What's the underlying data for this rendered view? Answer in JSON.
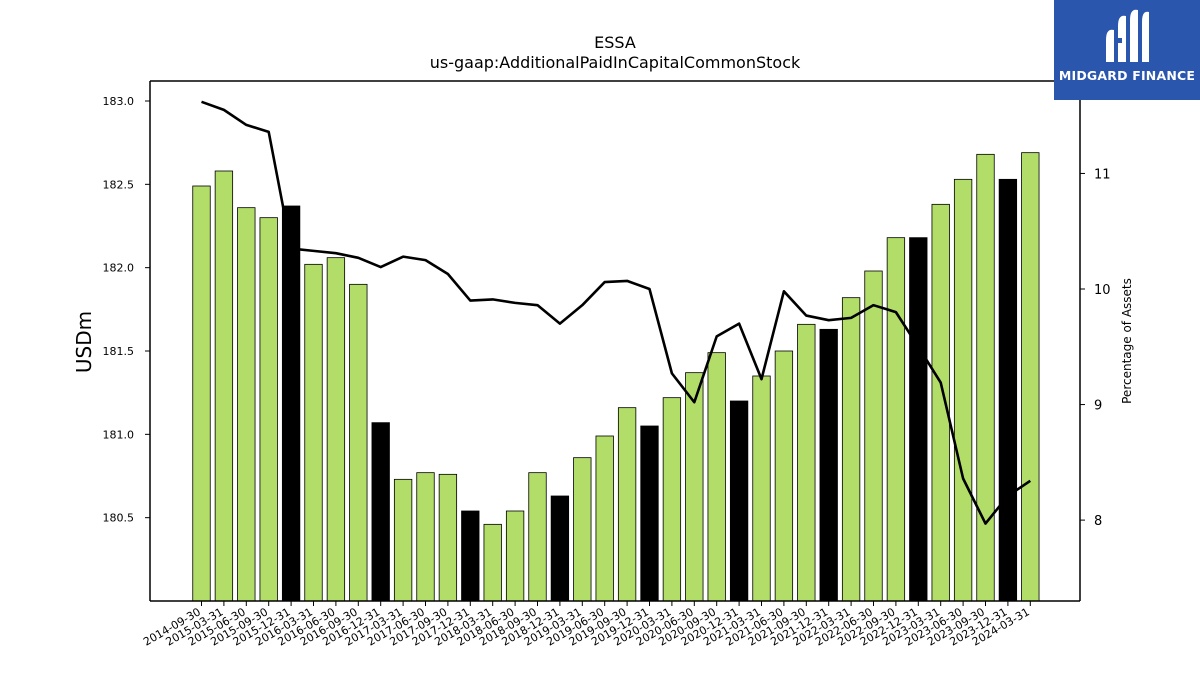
{
  "chart_data": {
    "type": "bar",
    "title": "ESSA",
    "subtitle": "us-gaap:AdditionalPaidInCapitalCommonStock",
    "ylabel": "USDm",
    "y2label": "Percentage of Assets",
    "ylim": [
      180.0,
      183.12
    ],
    "y2lim": [
      7.3,
      11.8
    ],
    "yticks": [
      "180.5",
      "181.0",
      "181.5",
      "182.0",
      "182.5",
      "183.0"
    ],
    "y2ticks": [
      "8",
      "9",
      "10",
      "11"
    ],
    "categories": [
      "2014-09-30",
      "2015-03-31",
      "2015-06-30",
      "2015-09-30",
      "2015-12-31",
      "2016-03-31",
      "2016-06-30",
      "2016-09-30",
      "2016-12-31",
      "2017-03-31",
      "2017-06-30",
      "2017-09-30",
      "2017-12-31",
      "2018-03-31",
      "2018-06-30",
      "2018-09-30",
      "2018-12-31",
      "2019-03-31",
      "2019-06-30",
      "2019-09-30",
      "2019-12-31",
      "2020-03-31",
      "2020-06-30",
      "2020-09-30",
      "2020-12-31",
      "2021-03-31",
      "2021-06-30",
      "2021-09-30",
      "2021-12-31",
      "2022-03-31",
      "2022-06-30",
      "2022-09-30",
      "2022-12-31",
      "2023-03-31",
      "2023-06-30",
      "2023-09-30",
      "2023-12-31",
      "2024-03-31"
    ],
    "series": [
      {
        "kind": "bar",
        "values": [
          182.49,
          182.58,
          182.36,
          182.3,
          182.37,
          182.02,
          182.06,
          181.9,
          181.07,
          180.73,
          180.77,
          180.76,
          180.54,
          180.46,
          180.54,
          180.77,
          180.63,
          180.86,
          180.99,
          181.16,
          181.05,
          181.22,
          181.37,
          181.49,
          181.2,
          181.35,
          181.5,
          181.66,
          181.63,
          181.82,
          181.98,
          182.18,
          182.18,
          182.38,
          182.53,
          182.68,
          182.53,
          182.69
        ],
        "highlight": [
          false,
          false,
          false,
          false,
          true,
          false,
          false,
          false,
          true,
          false,
          false,
          false,
          true,
          false,
          false,
          false,
          true,
          false,
          false,
          false,
          true,
          false,
          false,
          false,
          true,
          false,
          false,
          false,
          true,
          false,
          false,
          false,
          true,
          false,
          false,
          false,
          true,
          false
        ]
      },
      {
        "kind": "line",
        "axis": "right",
        "values": [
          11.62,
          11.55,
          11.42,
          11.36,
          10.35,
          10.33,
          10.31,
          10.27,
          10.19,
          10.28,
          10.25,
          10.13,
          9.9,
          9.91,
          9.88,
          9.86,
          9.7,
          9.86,
          10.06,
          10.07,
          10.0,
          9.27,
          9.02,
          9.59,
          9.7,
          9.22,
          9.98,
          9.77,
          9.73,
          9.75,
          9.86,
          9.8,
          9.5,
          9.19,
          8.36,
          7.97,
          8.21,
          8.34
        ]
      }
    ],
    "colors": {
      "bar": "#b3dd69",
      "highlight": "#000000",
      "line": "#000000"
    }
  },
  "brand": {
    "name": "MIDGARD FINANCE",
    "color": "#2b56ad"
  }
}
